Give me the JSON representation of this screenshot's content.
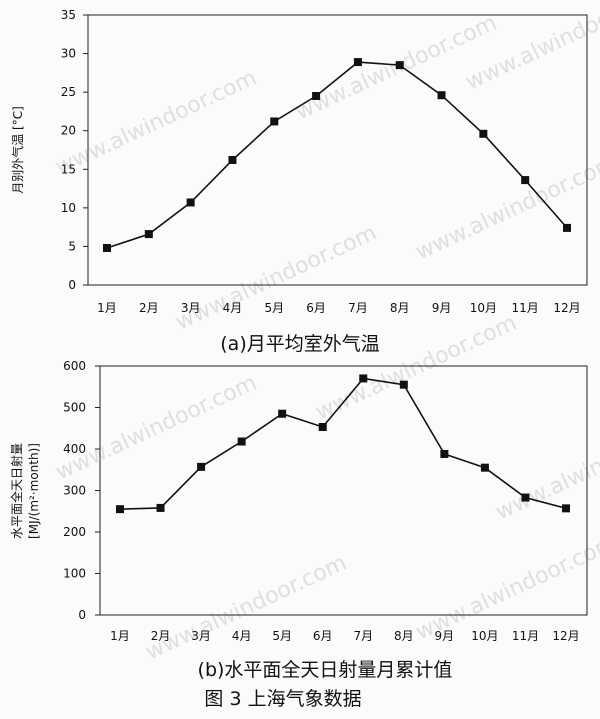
{
  "watermark": "www.alwindoor.com",
  "figure_caption": "图 3 上海气象数据",
  "chart_data": [
    {
      "type": "line",
      "caption": "(a)月平均室外气温",
      "ylabel": "月别外气温 [°C]",
      "xlabel": "",
      "categories": [
        "1月",
        "2月",
        "3月",
        "4月",
        "5月",
        "6月",
        "7月",
        "8月",
        "9月",
        "10月",
        "11月",
        "12月"
      ],
      "series": [
        {
          "values": [
            4.8,
            6.6,
            10.7,
            16.2,
            21.2,
            24.5,
            28.9,
            28.5,
            24.6,
            19.6,
            13.6,
            7.4
          ]
        }
      ],
      "ylim": [
        0,
        35
      ],
      "yticks": [
        0,
        5,
        10,
        15,
        20,
        25,
        30,
        35
      ],
      "grid": false,
      "marker": "square"
    },
    {
      "type": "line",
      "caption": "(b)水平面全天日射量月累计值",
      "ylabel": [
        "水平面全天日射量",
        "[MJ/(m²·month)]"
      ],
      "xlabel": "",
      "categories": [
        "1月",
        "2月",
        "3月",
        "4月",
        "5月",
        "6月",
        "7月",
        "8月",
        "9月",
        "10月",
        "11月",
        "12月"
      ],
      "series": [
        {
          "values": [
            255,
            258,
            357,
            418,
            485,
            453,
            570,
            555,
            388,
            355,
            283,
            257
          ]
        }
      ],
      "ylim": [
        0,
        600
      ],
      "yticks": [
        0,
        100,
        200,
        300,
        400,
        500,
        600
      ],
      "grid": false,
      "marker": "square"
    }
  ]
}
